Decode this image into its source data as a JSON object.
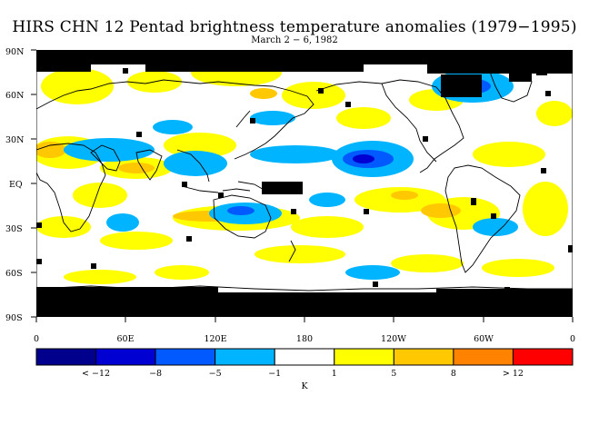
{
  "title": "HIRS CHN 12 Pentad brightness temperature anomalies (1979−1995)",
  "subtitle": "March 2 − 6, 1982",
  "axes": {
    "y_ticks": [
      "90N",
      "60N",
      "30N",
      "EQ",
      "30S",
      "60S",
      "90S"
    ],
    "x_ticks": [
      "0",
      "60E",
      "120E",
      "180",
      "120W",
      "60W",
      "0"
    ]
  },
  "colorbar": {
    "colors": [
      "#00008c",
      "#0000d2",
      "#005aff",
      "#00b4ff",
      "#ffffff",
      "#ffff00",
      "#ffc800",
      "#ff8200",
      "#ff0000"
    ],
    "labels": [
      "< −12",
      "−8",
      "−5",
      "−1",
      "1",
      "5",
      "8",
      "> 12"
    ],
    "unit": "K"
  },
  "colors": {
    "missing": "#000000",
    "coastline": "#000000",
    "background": "#ffffff"
  }
}
